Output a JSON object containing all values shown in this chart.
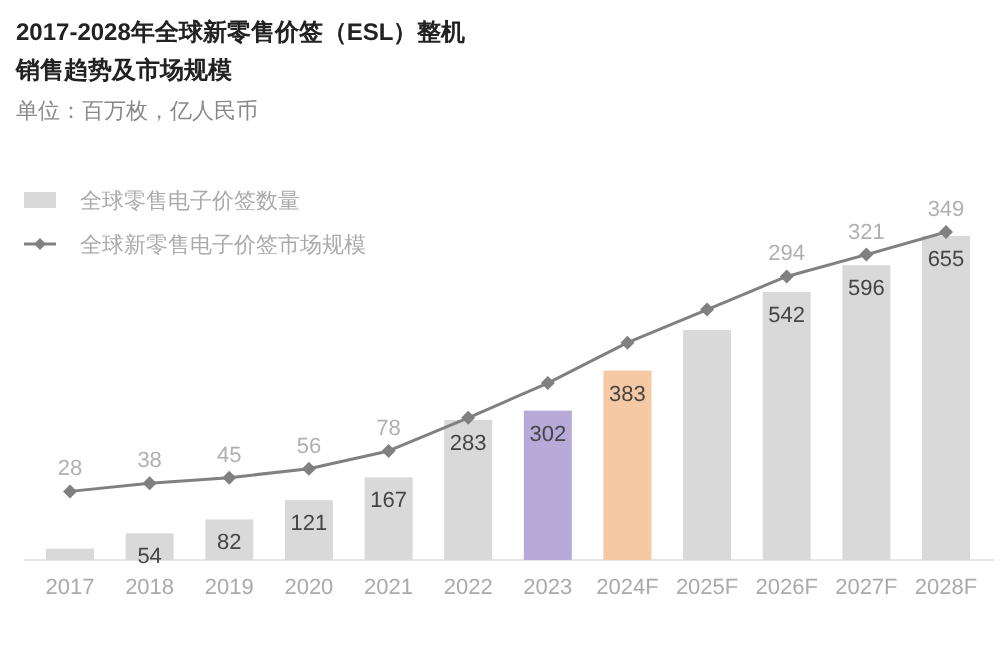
{
  "chart_data": {
    "type": "bar",
    "title": "2017-2028年全球新零售价签（ESL）整机销售趋势及市场规模",
    "subtitle": "单位：百万枚，亿人民币",
    "legend": "top left",
    "categories": [
      "2017",
      "2018",
      "2019",
      "2020",
      "2021",
      "2022",
      "2023",
      "2024F",
      "2025F",
      "2026F",
      "2027F",
      "2028F"
    ],
    "series": [
      {
        "name": "全球零售电子价签数量",
        "color": "#d9d9d9",
        "colors": [
          "#d9d9d9",
          "#d9d9d9",
          "#d9d9d9",
          "#d9d9d9",
          "#d9d9d9",
          "#d9d9d9",
          "#b7a9d8",
          "#f5c9a3",
          "#d9d9d9",
          "#d9d9d9",
          "#d9d9d9",
          "#d9d9d9"
        ],
        "values": [
          23,
          54,
          82,
          121,
          167,
          283,
          302,
          383,
          465,
          542,
          596,
          655
        ],
        "value_labels": [
          null,
          "54",
          "82",
          "121",
          "167",
          "283",
          "302",
          "383",
          null,
          "542",
          "596",
          "655"
        ]
      },
      {
        "name": "全球新零售电子价签市场规模",
        "type": "line",
        "axis": "y2",
        "color": "#808080",
        "marker": "diamond",
        "values": [
          28,
          38,
          45,
          56,
          78,
          119,
          162,
          212,
          253,
          294,
          321,
          349
        ],
        "value_labels": [
          "28",
          "38",
          "45",
          "56",
          "78",
          null,
          null,
          null,
          null,
          "294",
          "321",
          "349"
        ]
      }
    ]
  }
}
